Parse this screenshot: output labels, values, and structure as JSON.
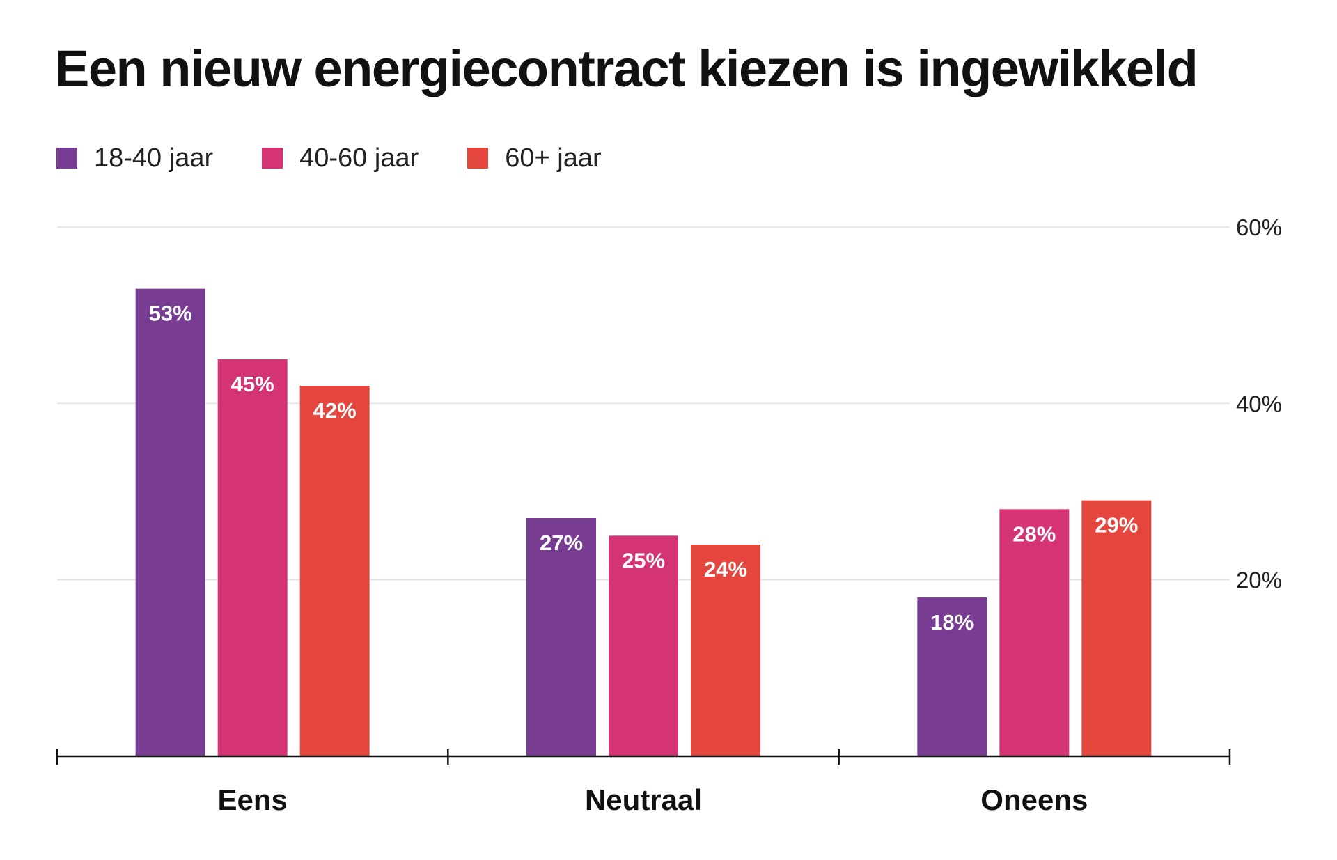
{
  "chart_data": {
    "type": "bar",
    "title": "Een nieuw energiecontract kiezen is ingewikkeld",
    "categories": [
      "Eens",
      "Neutraal",
      "Oneens"
    ],
    "series": [
      {
        "name": "18-40 jaar",
        "color": "#783C93",
        "values": [
          53,
          27,
          18
        ],
        "labels": [
          "53%",
          "27%",
          "18%"
        ]
      },
      {
        "name": "40-60 jaar",
        "color": "#D43474",
        "values": [
          45,
          25,
          28
        ],
        "labels": [
          "45%",
          "25%",
          "28%"
        ]
      },
      {
        "name": "60+ jaar",
        "color": "#E4463D",
        "values": [
          42,
          24,
          29
        ],
        "labels": [
          "42%",
          "24%",
          "29%"
        ]
      }
    ],
    "yticks": [
      20,
      40,
      60
    ],
    "ytick_labels": [
      "20%",
      "40%",
      "60%"
    ],
    "ylim": [
      0,
      60
    ],
    "xlabel": "",
    "ylabel": "",
    "grid": true,
    "y_axis_position": "right",
    "legend_position": "top-left",
    "colors": {
      "grid": "#E3E3E3",
      "axis": "#111111"
    }
  }
}
